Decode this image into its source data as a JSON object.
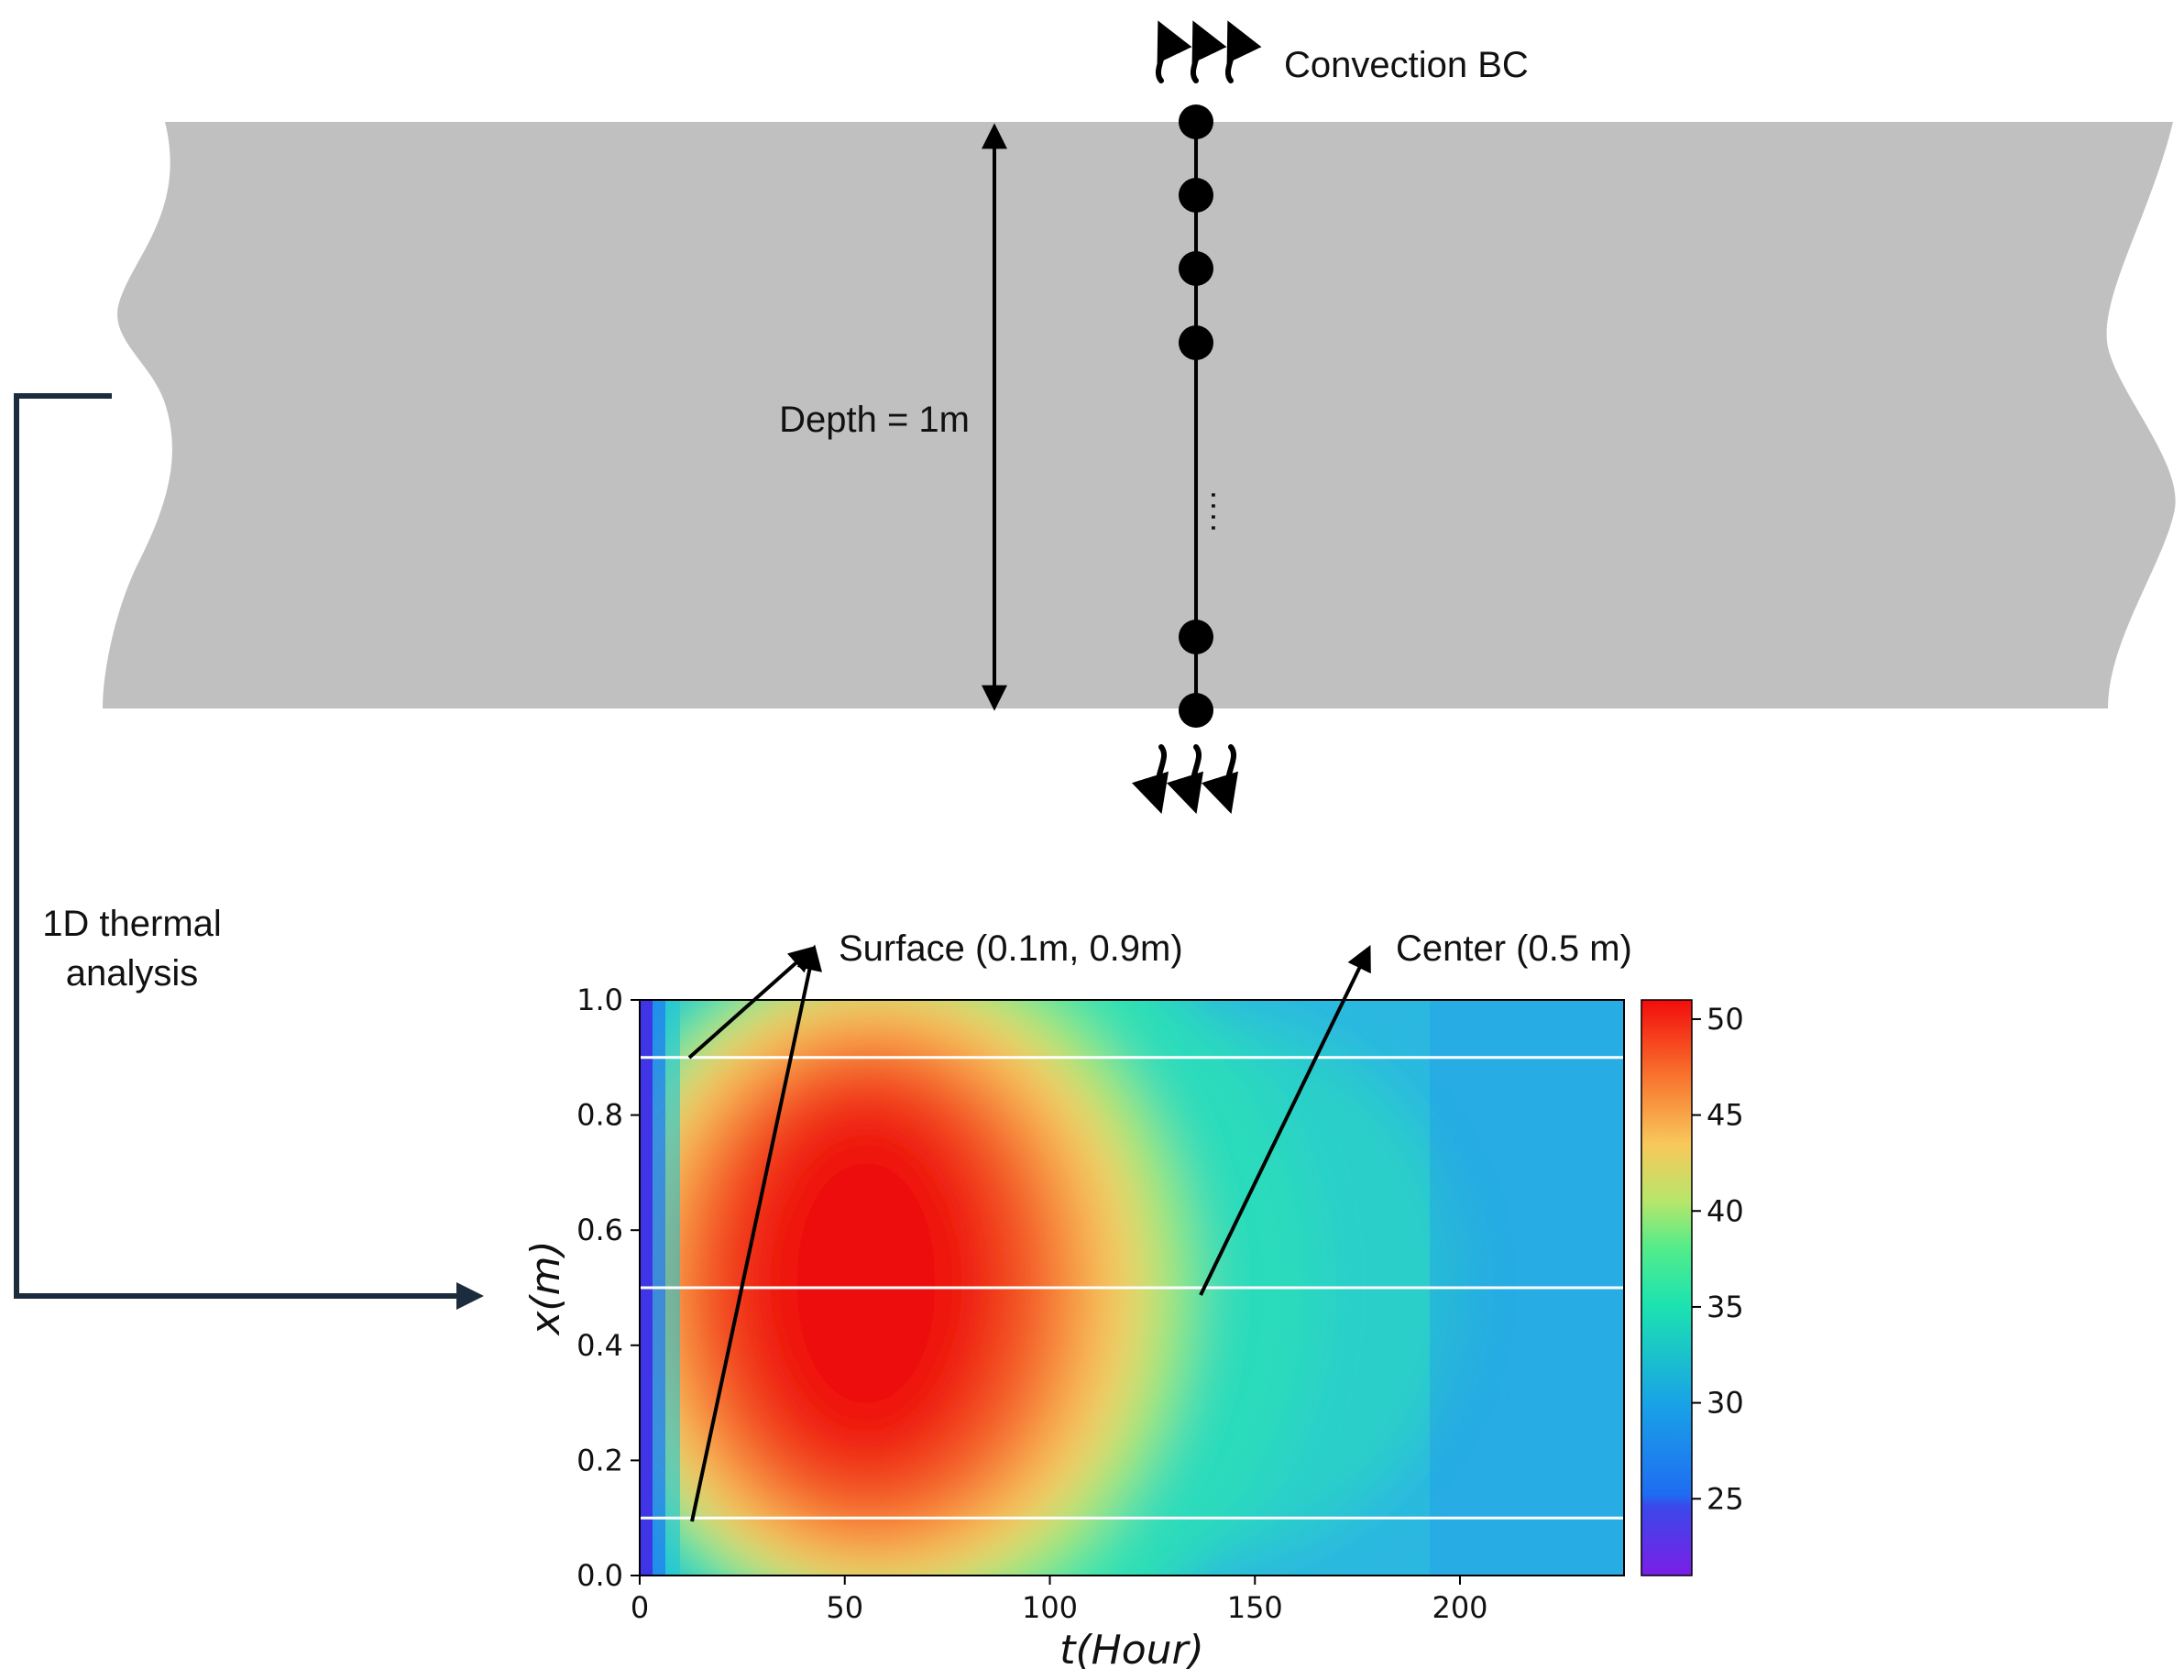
{
  "labels": {
    "convection": "Convection BC",
    "depth": "Depth = 1m",
    "analysis_line1": "1D thermal",
    "analysis_line2": "analysis",
    "surface": "Surface (0.1m, 0.9m)",
    "center": "Center (0.5 m)"
  },
  "node_dots": "....",
  "chart_data": {
    "type": "heatmap",
    "xlabel": "t(Hour)",
    "ylabel": "x(m)",
    "xlim": [
      0,
      240
    ],
    "ylim": [
      0.0,
      1.0
    ],
    "x_ticks": [
      "0",
      "50",
      "100",
      "150",
      "200"
    ],
    "y_ticks": [
      "0.0",
      "0.2",
      "0.4",
      "0.6",
      "0.8",
      "1.0"
    ],
    "colorbar": {
      "ticks": [
        "25",
        "30",
        "35",
        "40",
        "45",
        "50"
      ],
      "range": [
        21,
        51
      ]
    },
    "value_field": {
      "peak_value": 51,
      "peak_time_hours": 60,
      "peak_position_m": 0.5,
      "initial_value": 25,
      "final_center_value": 31
    },
    "reference_lines_m": [
      0.1,
      0.5,
      0.9
    ]
  },
  "colors": {
    "slab": "#c0c0c0",
    "line": "#000000",
    "bracket": "#1b2d3d",
    "ref_line": "#ffffff"
  },
  "icons": [
    "heat-flux-up-icon",
    "heat-flux-down-icon"
  ]
}
